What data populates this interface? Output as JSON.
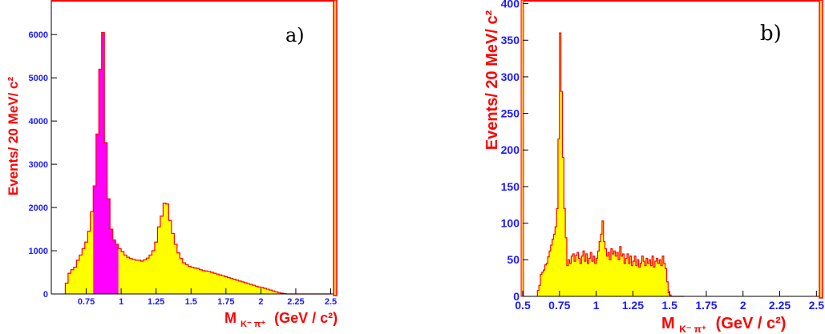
{
  "colors": {
    "fill": "#ffff00",
    "highlight": "#ff00ff",
    "outline": "#ff0000",
    "frame": "#ff0000",
    "ticks": "#1a1aff",
    "labels": "#ff0000"
  },
  "chart_data": [
    {
      "type": "bar",
      "panel_label": "a)",
      "ylabel": "Events/ 20 MeV/ c²",
      "xlabel_main": "M",
      "xlabel_sub": "K⁻ π⁺",
      "xlabel_units": "(GeV / c²)",
      "xlim": [
        0.5,
        2.52
      ],
      "ylim": [
        0,
        6800
      ],
      "x_ticks": [
        "0.75",
        "1",
        "1.25",
        "1.5",
        "1.75",
        "2",
        "2.25",
        "2.5"
      ],
      "y_ticks": [
        "0",
        "1000",
        "2000",
        "3000",
        "4000",
        "5000",
        "6000"
      ],
      "bin_width": 0.02,
      "bin_low_edges": [
        0.6,
        0.62,
        0.64,
        0.66,
        0.68,
        0.7,
        0.72,
        0.74,
        0.76,
        0.78,
        0.8,
        0.82,
        0.84,
        0.86,
        0.88,
        0.9,
        0.92,
        0.94,
        0.96,
        0.98,
        1.0,
        1.02,
        1.04,
        1.06,
        1.08,
        1.1,
        1.12,
        1.14,
        1.16,
        1.18,
        1.2,
        1.22,
        1.24,
        1.26,
        1.28,
        1.3,
        1.32,
        1.34,
        1.36,
        1.38,
        1.4,
        1.42,
        1.44,
        1.46,
        1.48,
        1.5,
        1.52,
        1.54,
        1.56,
        1.58,
        1.6,
        1.62,
        1.64,
        1.66,
        1.68,
        1.7,
        1.72,
        1.74,
        1.76,
        1.78,
        1.8,
        1.82,
        1.84,
        1.86,
        1.88,
        1.9,
        1.92,
        1.94,
        1.96,
        1.98,
        2.0,
        2.02,
        2.04,
        2.06,
        2.08,
        2.1,
        2.12,
        2.14,
        2.16,
        2.18,
        2.2,
        2.22,
        2.24,
        2.26,
        2.28,
        2.3,
        2.32,
        2.34,
        2.36,
        2.38,
        2.4,
        2.42,
        2.44,
        2.46,
        2.48
      ],
      "values": [
        250,
        480,
        560,
        620,
        780,
        900,
        1050,
        1200,
        1450,
        1900,
        2500,
        3700,
        5200,
        6050,
        3500,
        2200,
        1500,
        1250,
        1150,
        1050,
        980,
        900,
        850,
        820,
        800,
        780,
        780,
        760,
        790,
        830,
        900,
        1000,
        1200,
        1550,
        1800,
        2100,
        2080,
        1700,
        1400,
        1150,
        950,
        820,
        720,
        680,
        640,
        620,
        600,
        590,
        560,
        540,
        530,
        520,
        500,
        480,
        460,
        440,
        420,
        400,
        380,
        360,
        340,
        320,
        300,
        280,
        260,
        240,
        220,
        200,
        180,
        160,
        150,
        130,
        110,
        90,
        70,
        50,
        30,
        20,
        10,
        0,
        0,
        0,
        0,
        0,
        0,
        0,
        0,
        0,
        0,
        0,
        0,
        0,
        0,
        0,
        0
      ],
      "highlight_range": [
        0.8,
        0.98
      ]
    },
    {
      "type": "bar",
      "panel_label": "b)",
      "ylabel": "Events/ 20 MeV/ c²",
      "xlabel_main": "M",
      "xlabel_sub": "K⁻ π⁺",
      "xlabel_units": "(GeV / c²)",
      "xlim": [
        0.5,
        2.52
      ],
      "ylim": [
        0,
        405
      ],
      "x_ticks": [
        "0.5",
        "0.75",
        "1",
        "1.25",
        "1.5",
        "1.75",
        "2",
        "2.25",
        "2.5"
      ],
      "y_ticks": [
        "0",
        "50",
        "100",
        "150",
        "200",
        "250",
        "300",
        "350",
        "400"
      ],
      "bin_width": 0.01,
      "bin_start": 0.6,
      "values": [
        8,
        15,
        30,
        33,
        36,
        43,
        45,
        54,
        62,
        70,
        78,
        85,
        95,
        120,
        215,
        360,
        280,
        190,
        120,
        80,
        42,
        50,
        45,
        55,
        58,
        48,
        56,
        60,
        52,
        45,
        55,
        62,
        48,
        58,
        45,
        52,
        60,
        48,
        55,
        45,
        52,
        62,
        75,
        85,
        103,
        75,
        65,
        55,
        60,
        50,
        65,
        58,
        62,
        55,
        60,
        50,
        68,
        55,
        58,
        45,
        52,
        58,
        45,
        55,
        42,
        48,
        55,
        42,
        50,
        40,
        45,
        55,
        48,
        42,
        52,
        45,
        50,
        42,
        55,
        40,
        48,
        52,
        45,
        50,
        42,
        55,
        45,
        38,
        20,
        5,
        2,
        0,
        0,
        0,
        0,
        0,
        0,
        0,
        0,
        0
      ]
    }
  ]
}
